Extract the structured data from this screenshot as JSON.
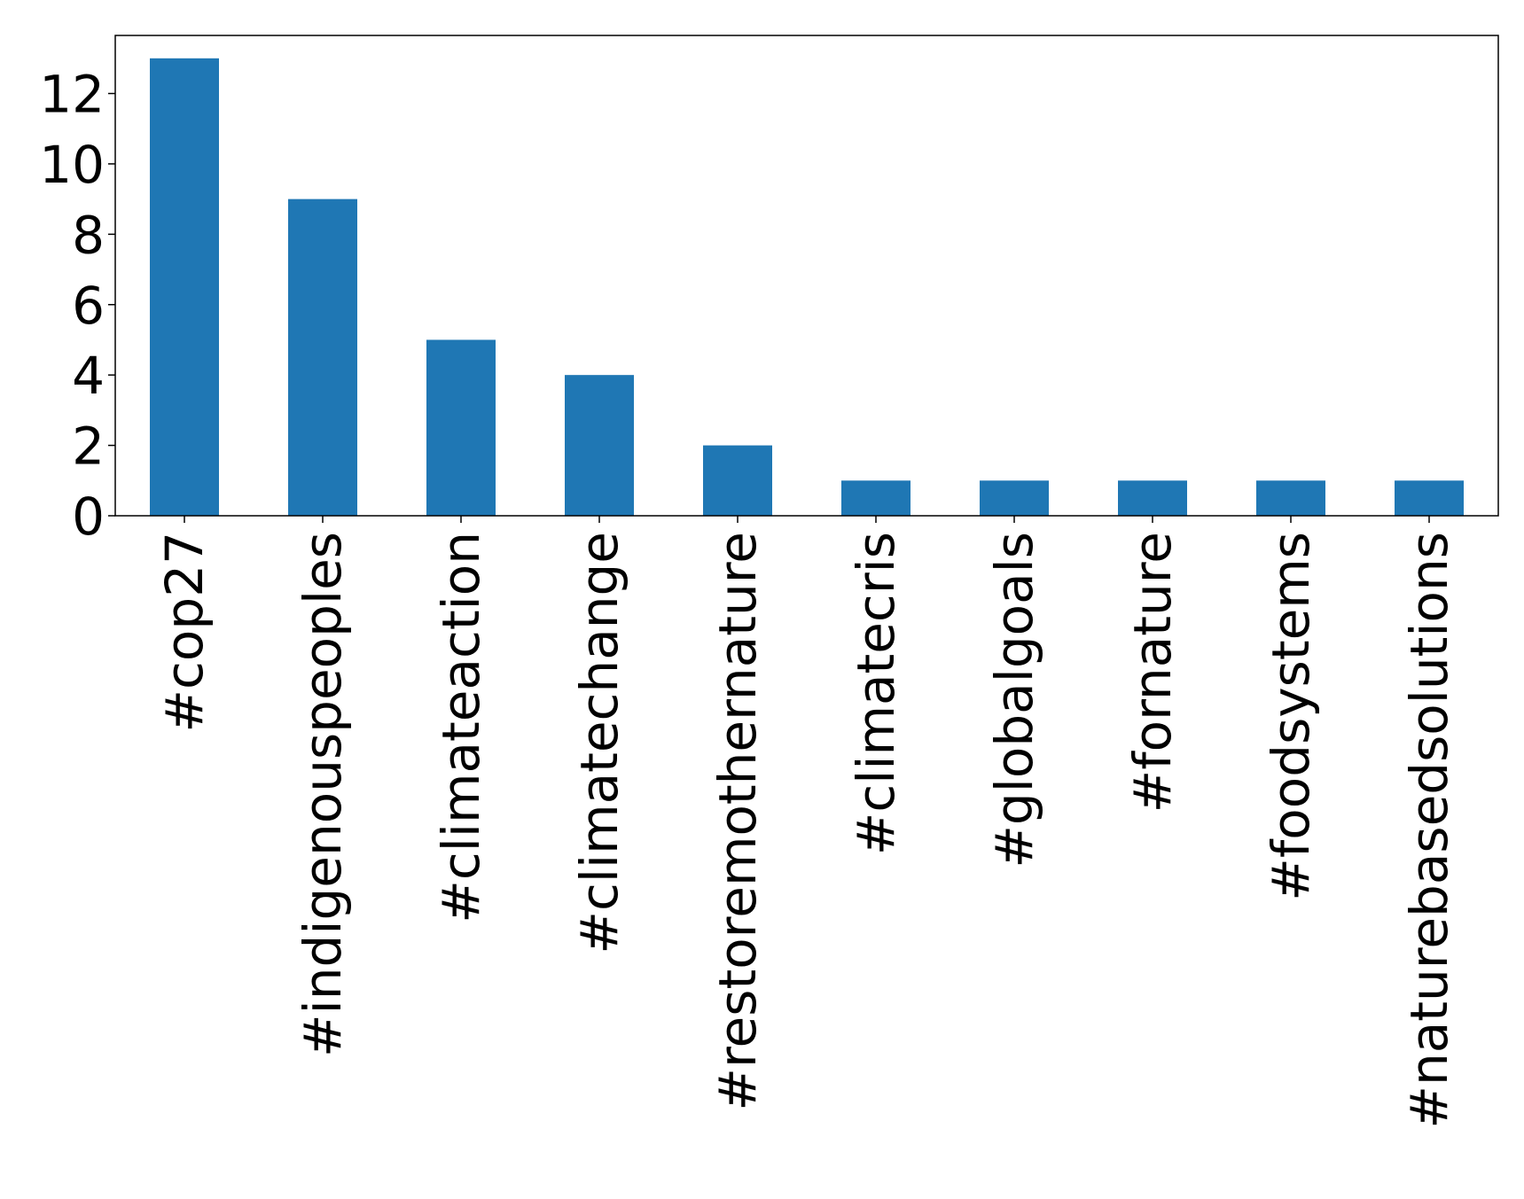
{
  "chart_data": {
    "type": "bar",
    "title": "",
    "xlabel": "",
    "ylabel": "",
    "categories": [
      "#cop27",
      "#indigenouspeoples",
      "#climateaction",
      "#climatechange",
      "#restoremothernature",
      "#climatecris",
      "#globalgoals",
      "#fornature",
      "#foodsystems",
      "#naturebasedsolutions"
    ],
    "values": [
      13,
      9,
      5,
      4,
      2,
      1,
      1,
      1,
      1,
      1
    ],
    "ylim": [
      0,
      13.65
    ],
    "yticks": [
      0,
      2,
      4,
      6,
      8,
      10,
      12
    ],
    "ytick_labels": [
      "0",
      "2",
      "4",
      "6",
      "8",
      "10",
      "12"
    ],
    "grid": false,
    "legend": "none",
    "bar_color": "#1f77b4"
  }
}
